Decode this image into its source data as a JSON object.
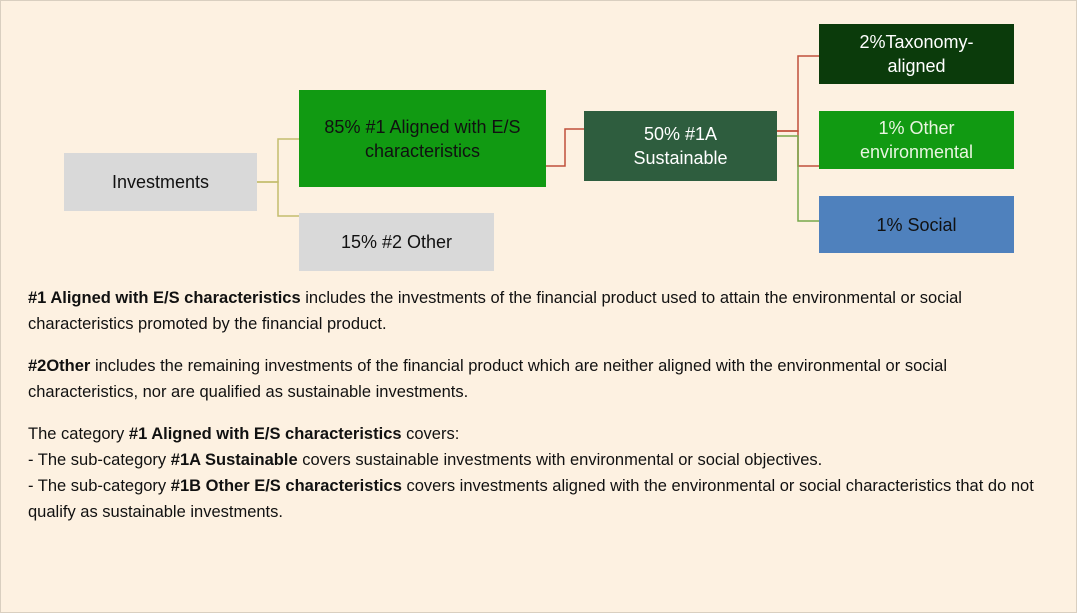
{
  "nodes": [
    {
      "label": "Investments"
    },
    {
      "label": "85% #1 Aligned with E/S characteristics"
    },
    {
      "label": "15%  #2 Other"
    },
    {
      "label": "50% #1A Sustainable"
    },
    {
      "label": "2%Taxonomy-aligned"
    },
    {
      "label": "1% Other environmental"
    },
    {
      "label": "1% Social"
    }
  ],
  "paragraphs": [
    [
      {
        "bold": "#1 Aligned with E/S characteristics"
      },
      {
        "text": " includes the investments of the financial product used to attain the environmental or social characteristics promoted by the financial product."
      }
    ],
    [
      {
        "bold": "#2Other"
      },
      {
        "text": " includes the remaining investments of the financial product which are neither aligned with the environmental or social characteristics, nor are qualified as sustainable investments."
      }
    ]
  ],
  "categories": {
    "intro": [
      {
        "text": "The category "
      },
      {
        "bold": "#1 Aligned with E/S characteristics"
      },
      {
        "text": " covers:"
      }
    ],
    "items": [
      [
        {
          "text": "- The sub-category "
        },
        {
          "bold": "#1A Sustainable"
        },
        {
          "text": " covers sustainable investments with environmental or social objectives."
        }
      ],
      [
        {
          "text": "- The sub-category "
        },
        {
          "bold": "#1B Other E/S characteristics"
        },
        {
          "text": " covers investments aligned with the environmental or social characteristics that do not qualify as sustainable investments."
        }
      ]
    ]
  }
}
